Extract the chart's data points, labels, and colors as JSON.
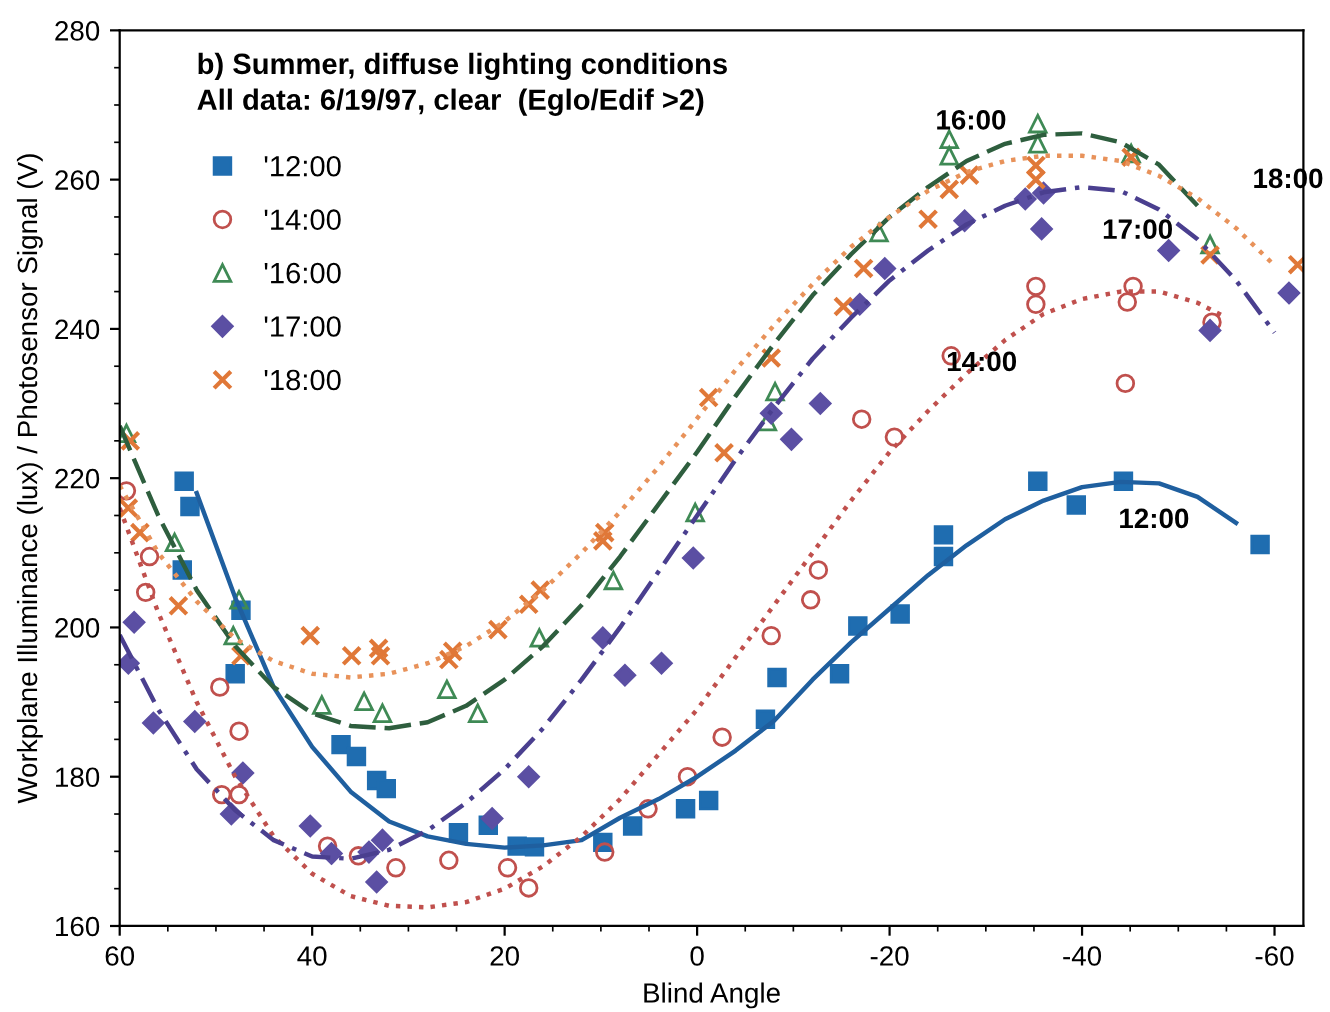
{
  "chart_data": {
    "type": "scatter",
    "title": "b) Summer, diffuse lighting conditions",
    "subtitle": "All data: 6/19/97, clear  (Eglo/Edif >2)",
    "xlabel": "Blind Angle",
    "ylabel": "Workplane Illuminance (lux) / Photosensor Signal (V)",
    "xlim": [
      60,
      -63
    ],
    "ylim": [
      160,
      280
    ],
    "xticks": [
      60,
      40,
      20,
      0,
      -20,
      -40,
      -60
    ],
    "yticks": [
      160,
      180,
      200,
      220,
      240,
      260,
      280
    ],
    "grid": false,
    "legend": "top left",
    "series": [
      {
        "name": "'12:00",
        "marker": "square",
        "color": "#1f6db0",
        "x": [
          53.3,
          52.7,
          53.5,
          48,
          47.4,
          37,
          35.4,
          33.3,
          32.3,
          24.8,
          21.7,
          18.7,
          16.9,
          9.8,
          6.7,
          1.2,
          -1.2,
          -7.1,
          -8.3,
          -14.8,
          -16.7,
          -21.1,
          -25.6,
          -25.6,
          -35.4,
          -39.4,
          -44.3,
          -58.5
        ],
        "values": [
          219.6,
          216.2,
          207.7,
          193.8,
          202.3,
          184.3,
          182.7,
          179.5,
          178.4,
          172.5,
          173.5,
          170.7,
          170.6,
          171.2,
          173.4,
          175.7,
          176.8,
          187.7,
          193.3,
          193.8,
          200.2,
          201.8,
          209.5,
          212.4,
          219.6,
          216.4,
          219.6,
          211.1
        ]
      },
      {
        "name": "'14:00",
        "marker": "circle",
        "color": "#c0504d",
        "x": [
          59.3,
          56.9,
          57.3,
          49.6,
          47.6,
          49.4,
          47.6,
          38.4,
          35.2,
          31.3,
          25.8,
          19.7,
          17.5,
          9.6,
          5.1,
          1.0,
          -2.6,
          -7.7,
          -11.8,
          -12.6,
          -17.1,
          -20.5,
          -26.4,
          -35.2,
          -35.2,
          -44.5,
          -45.3,
          -44.7,
          -53.5
        ],
        "values": [
          218.3,
          209.5,
          204.7,
          192,
          186.1,
          177.6,
          177.6,
          170.7,
          169.4,
          167.8,
          168.8,
          167.8,
          165.1,
          169.9,
          175.7,
          180,
          185.3,
          198.9,
          203.7,
          207.7,
          227.9,
          225.5,
          236.4,
          243.3,
          245.7,
          232.7,
          245.7,
          243.6,
          240.9
        ]
      },
      {
        "name": "'16:00",
        "marker": "triangle",
        "color": "#3f8a55",
        "x": [
          59.3,
          54.3,
          48.2,
          47.6,
          39,
          34.6,
          32.7,
          26,
          22.8,
          16.4,
          8.7,
          0.2,
          -7.3,
          -8.1,
          -18.9,
          -26.2,
          -26.2,
          -35.4,
          -35.4,
          -45.1,
          -53.3
        ],
        "values": [
          226,
          211.4,
          198.9,
          203.7,
          189.6,
          190.1,
          188.5,
          191.7,
          188.5,
          198.6,
          206.3,
          215.4,
          227.6,
          231.6,
          252.9,
          265.4,
          263.2,
          267.5,
          264.8,
          263.5,
          251.3
        ]
      },
      {
        "name": "'17:00",
        "marker": "diamond",
        "color": "#5b4fa3",
        "x": [
          58.5,
          59.1,
          56.5,
          52.2,
          47.2,
          48.4,
          40.2,
          38,
          34.1,
          32.7,
          33.3,
          21.3,
          17.5,
          9.8,
          7.5,
          3.7,
          0.4,
          -7.7,
          -9.8,
          -12.8,
          -16.9,
          -19.5,
          -27.8,
          -34.1,
          -36,
          -35.8,
          -49,
          -53.3,
          -61.5
        ],
        "values": [
          200.7,
          195.2,
          187.2,
          187.4,
          180.5,
          175,
          173.4,
          169.7,
          169.9,
          171.5,
          165.9,
          174.4,
          180,
          198.6,
          193.6,
          195.2,
          209.3,
          228.7,
          225.2,
          230,
          243.3,
          248.1,
          254.5,
          257.4,
          258.2,
          253.4,
          250.5,
          239.8,
          244.8
        ]
      },
      {
        "name": "'18:00",
        "marker": "cross",
        "color": "#e07838",
        "x": [
          58.9,
          59.1,
          57.9,
          53.9,
          47.4,
          40.2,
          35.9,
          33.1,
          32.9,
          25.8,
          25.4,
          20.7,
          17.5,
          16.3,
          9.8,
          9.6,
          -1.2,
          -2.8,
          -7.7,
          -15.2,
          -17.3,
          -24,
          -26.2,
          -28.3,
          -35.2,
          -35.2,
          -45.1,
          -53.3,
          -62.4
        ],
        "values": [
          225,
          216,
          212.7,
          202.9,
          196.2,
          198.9,
          196.2,
          197.2,
          196.2,
          195.7,
          196.8,
          199.7,
          203.1,
          205,
          211.6,
          212.7,
          230.8,
          223.4,
          236.1,
          243,
          248.1,
          254.7,
          258.7,
          260.6,
          261.9,
          260,
          263,
          249.9,
          248.6
        ]
      },
      {
        "name": "12:00",
        "type": "line",
        "line_style": "solid",
        "color": "#1f5f9f",
        "x": [
          52,
          48,
          44,
          40,
          36,
          32,
          28,
          24,
          20,
          16,
          12,
          8,
          4,
          0,
          -4,
          -8,
          -12,
          -16,
          -20,
          -24,
          -28,
          -32,
          -36,
          -40,
          -44,
          -48,
          -52,
          -56
        ],
        "values": [
          218,
          204,
          192,
          184,
          178,
          174,
          172,
          171,
          170.5,
          170.8,
          171.5,
          174.5,
          177,
          180,
          183.5,
          187.5,
          193,
          198,
          202.5,
          207,
          211,
          214.5,
          217,
          218.8,
          219.5,
          219.3,
          217.5,
          214
        ]
      },
      {
        "name": "14:00",
        "type": "line",
        "line_style": "dotted",
        "color": "#c0504d",
        "x": [
          60,
          56,
          52,
          48,
          44,
          40,
          36,
          32,
          28,
          24,
          20,
          16,
          12,
          8,
          4,
          0,
          -4,
          -8,
          -12,
          -16,
          -20,
          -24,
          -28,
          -32,
          -36,
          -40,
          -44,
          -48,
          -52,
          -55
        ],
        "values": [
          216,
          202,
          190,
          180,
          172,
          167,
          164,
          162.7,
          162.5,
          163.2,
          165,
          168,
          172,
          177,
          183,
          189,
          196,
          203,
          210,
          217,
          223.5,
          229,
          234,
          238.5,
          242,
          244,
          245,
          245,
          243.5,
          241.5
        ]
      },
      {
        "name": "16:00",
        "type": "line",
        "line_style": "dashed",
        "color": "#2e5e3e",
        "x": [
          60,
          56,
          52,
          48,
          44,
          40,
          36,
          32,
          28,
          24,
          20,
          16,
          12,
          8,
          4,
          0,
          -4,
          -8,
          -12,
          -16,
          -20,
          -24,
          -28,
          -32,
          -36,
          -40,
          -44,
          -48,
          -52
        ],
        "values": [
          227,
          215,
          205,
          197.5,
          192,
          188.5,
          186.8,
          186.5,
          187.3,
          189.5,
          193,
          197.5,
          203,
          209.5,
          216.5,
          223.5,
          231,
          238,
          244.5,
          250,
          255,
          259,
          262.5,
          264.8,
          266,
          266.2,
          265,
          262,
          256.5
        ]
      },
      {
        "name": "17:00",
        "type": "line",
        "line_style": "dashdot",
        "color": "#4a3f8f",
        "x": [
          60,
          56,
          52,
          48,
          44,
          40,
          36,
          32,
          28,
          24,
          20,
          16,
          12,
          8,
          4,
          0,
          -4,
          -8,
          -12,
          -16,
          -20,
          -24,
          -28,
          -32,
          -36,
          -40,
          -44,
          -48,
          -52,
          -56,
          -60
        ],
        "values": [
          199,
          189,
          181,
          175.5,
          171.5,
          169.3,
          169,
          170.2,
          172.8,
          176.5,
          181,
          186.5,
          193,
          200,
          207.5,
          215,
          222.5,
          229.5,
          236,
          241.5,
          246.5,
          250.5,
          254,
          256.5,
          258.3,
          259,
          258.5,
          256,
          252,
          246.5,
          239.5
        ]
      },
      {
        "name": "18:00",
        "type": "line",
        "line_style": "dotted",
        "color": "#e8925a",
        "x": [
          60,
          56,
          52,
          48,
          44,
          40,
          36,
          32,
          28,
          24,
          20,
          16,
          12,
          8,
          4,
          0,
          -4,
          -8,
          -12,
          -16,
          -20,
          -24,
          -28,
          -32,
          -36,
          -40,
          -44,
          -48,
          -52,
          -56,
          -60
        ],
        "values": [
          219,
          210,
          203.5,
          198.5,
          195.5,
          193.8,
          193.3,
          193.8,
          195.2,
          197.5,
          200.8,
          205,
          210,
          215.5,
          221.5,
          228,
          234.5,
          240.5,
          246,
          251,
          255,
          258.5,
          261,
          262.5,
          263.2,
          263.2,
          262.5,
          260.5,
          257.5,
          253.5,
          248.5
        ]
      }
    ]
  }
}
